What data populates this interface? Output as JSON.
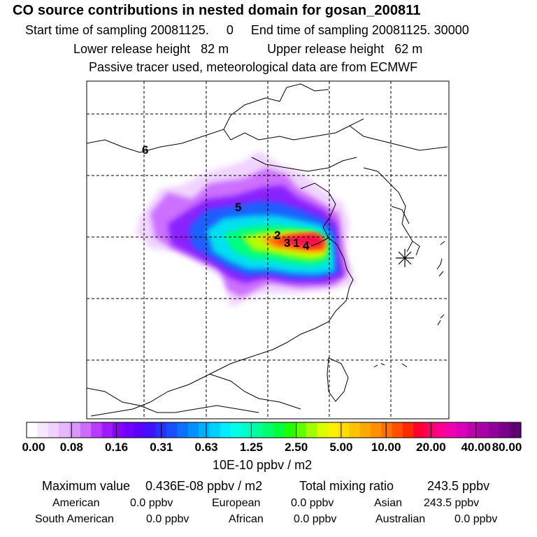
{
  "header": {
    "title": "CO  source contributions in nested domain for gosan_200811",
    "line1": "Start time of sampling 20081125.     0     End time of sampling 20081125. 30000",
    "line2": "Lower release height   82 m           Upper release height   62 m",
    "line3": "Passive tracer used, meteorological data are from ECMWF"
  },
  "map": {
    "source_labels": [
      "6",
      "5",
      "2",
      "3",
      "1",
      "4"
    ],
    "receptor_marker": "receptor-star-icon"
  },
  "colorbar": {
    "labels": [
      "0.00",
      "0.08",
      "0.16",
      "0.31",
      "0.63",
      "1.25",
      "2.50",
      "5.00",
      "10.00",
      "20.00",
      "40.00",
      "80.00"
    ],
    "colors": [
      "#ffffff",
      "#f8e8ff",
      "#efd2ff",
      "#e6b8ff",
      "#da96ff",
      "#cc6cff",
      "#b83cff",
      "#a01aff",
      "#8a00ff",
      "#7000ff",
      "#5a00ff",
      "#4010ff",
      "#2a30ff",
      "#1550ff",
      "#0a70ff",
      "#0090ff",
      "#00b0ff",
      "#00d0ff",
      "#00eeff",
      "#00ffe6",
      "#00ffc8",
      "#00ff9c",
      "#00ff6a",
      "#00ff3a",
      "#20ff00",
      "#60ff00",
      "#a0ff00",
      "#d8ff00",
      "#fff200",
      "#ffdc00",
      "#ffc400",
      "#ffaa00",
      "#ff9000",
      "#ff7200",
      "#ff5000",
      "#ff2a00",
      "#ff0030",
      "#ff0060",
      "#ff0090",
      "#f000b0",
      "#d800b8",
      "#c000b0",
      "#a800a8",
      "#900098",
      "#780088",
      "#600070"
    ],
    "unit": "10E-10 ppbv / m2"
  },
  "stats": {
    "max_label": "Maximum value",
    "max_value": "0.436E-08 ppbv / m2",
    "total_label": "Total mixing ratio",
    "total_value": "243.5 ppbv",
    "american_label": "American",
    "american_value": "0.0 ppbv",
    "european_label": "European",
    "european_value": "0.0 ppbv",
    "asian_label": "Asian",
    "asian_value": "243.5 ppbv",
    "south_american_label": "South American",
    "south_american_value": "0.0 ppbv",
    "african_label": "African",
    "african_value": "0.0 ppbv",
    "australian_label": "Australian",
    "australian_value": "0.0 ppbv"
  }
}
